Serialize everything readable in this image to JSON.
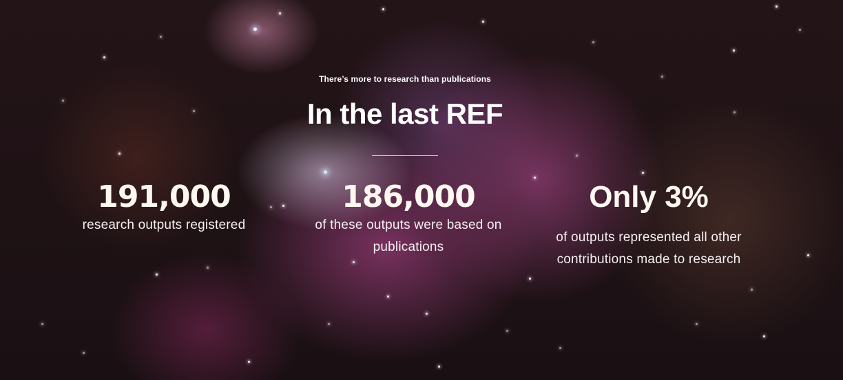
{
  "hero": {
    "eyebrow": "There’s more to research than publications",
    "title": "In the last REF"
  },
  "stats": [
    {
      "value": "191,000",
      "description": "research outputs registered"
    },
    {
      "value": "186,000",
      "description": "of these outputs were based on publications"
    },
    {
      "value": "Only 3%",
      "description": "of outputs represented all other contributions made to research"
    }
  ]
}
